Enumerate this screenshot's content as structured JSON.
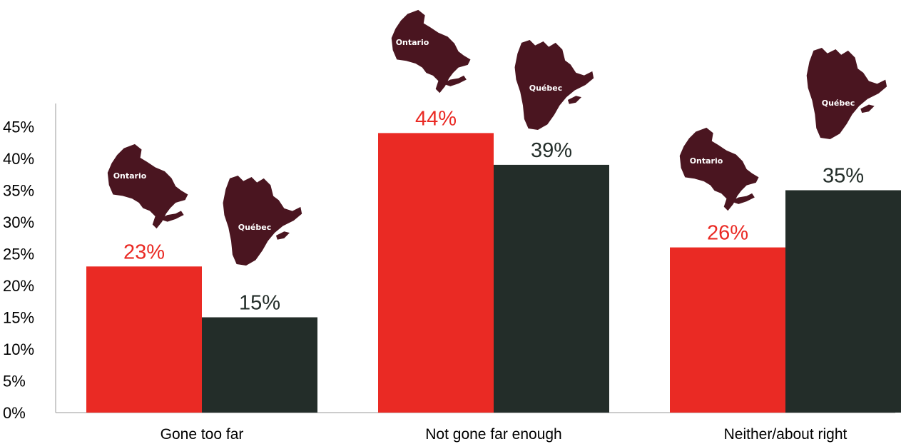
{
  "chart_data": {
    "type": "bar",
    "categories": [
      "Gone too far",
      "Not gone far enough",
      "Neither/about right"
    ],
    "series": [
      {
        "name": "Ontario",
        "color": "#ea2a24",
        "values": [
          23,
          44,
          26
        ],
        "value_labels": [
          "23%",
          "44%",
          "26%"
        ]
      },
      {
        "name": "Québec",
        "color": "#232d29",
        "values": [
          15,
          39,
          35
        ],
        "value_labels": [
          "15%",
          "39%",
          "35%"
        ]
      }
    ],
    "ylim": [
      0,
      45
    ],
    "yticks": [
      0,
      5,
      10,
      15,
      20,
      25,
      30,
      35,
      40,
      45
    ],
    "ytick_labels": [
      "0%",
      "5%",
      "10%",
      "15%",
      "20%",
      "25%",
      "30%",
      "35%",
      "40%",
      "45%"
    ],
    "title": "",
    "xlabel": "",
    "ylabel": "",
    "grid": false,
    "legend": "province map icons above bars",
    "map_icon_color": "#4a1520",
    "value_label_colors": {
      "Ontario": "#ea2a24",
      "Québec": "#232d29"
    }
  }
}
